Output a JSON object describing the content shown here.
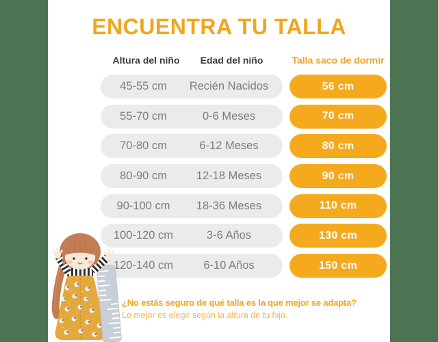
{
  "title": "ENCUENTRA TU TALLA",
  "colors": {
    "accent_orange": "#F1A51F",
    "pill_orange": "#F5A91D",
    "green_band": "#4C7453",
    "row_bg": "#EBEBEB",
    "row_text": "#7E7D7B",
    "header_text": "#3E3D3B",
    "footer_light": "#F8B545"
  },
  "table": {
    "headers": {
      "height": "Altura del niño",
      "age": "Edad del niño",
      "size": "Talla saco de dormir"
    },
    "rows": [
      {
        "height": "45-55 cm",
        "age": "Recién Nacidos",
        "size": "56 cm"
      },
      {
        "height": "55-70 cm",
        "age": "0-6 Meses",
        "size": "70 cm"
      },
      {
        "height": "70-80 cm",
        "age": "6-12 Meses",
        "size": "80 cm"
      },
      {
        "height": "80-90 cm",
        "age": "12-18 Meses",
        "size": "90 cm"
      },
      {
        "height": "90-100 cm",
        "age": "18-36 Meses",
        "size": "110 cm"
      },
      {
        "height": "100-120 cm",
        "age": "3-6 Años",
        "size": "130 cm"
      },
      {
        "height": "120-140 cm",
        "age": "6-10 Años",
        "size": "150 cm"
      }
    ]
  },
  "footer": {
    "question": "¿No estás seguro de qué talla es la que mejor se adapta?",
    "advice": "Lo mejor es elegir según la altura de tu hijo."
  },
  "chart_data": {
    "type": "table",
    "title": "ENCUENTRA TU TALLA",
    "columns": [
      "Altura del niño",
      "Edad del niño",
      "Talla saco de dormir"
    ],
    "rows": [
      [
        "45-55 cm",
        "Recién Nacidos",
        "56 cm"
      ],
      [
        "55-70 cm",
        "0-6 Meses",
        "70 cm"
      ],
      [
        "70-80 cm",
        "6-12 Meses",
        "80 cm"
      ],
      [
        "80-90 cm",
        "12-18 Meses",
        "90 cm"
      ],
      [
        "90-100 cm",
        "18-36 Meses",
        "110 cm"
      ],
      [
        "100-120 cm",
        "3-6 Años",
        "130 cm"
      ],
      [
        "120-140 cm",
        "6-10 Años",
        "150 cm"
      ]
    ],
    "notes": [
      "¿No estás seguro de qué talla es la que mejor se adapta?",
      "Lo mejor es elegir según la altura de tu hijo."
    ]
  }
}
